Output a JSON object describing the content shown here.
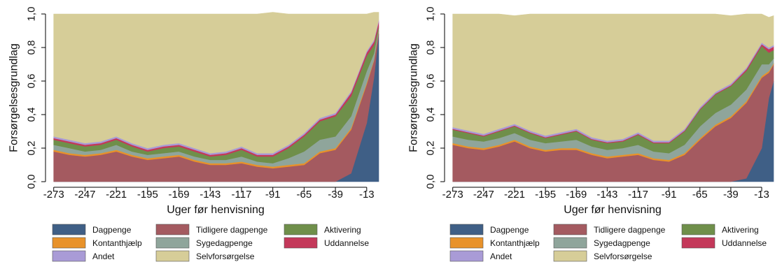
{
  "chart_data": [
    {
      "type": "area",
      "stacked": true,
      "ylabel": "Forsørgelsesgrundlag",
      "xlabel": "Uger før henvisning",
      "xlim": [
        -274,
        -3
      ],
      "ylim": [
        0,
        1
      ],
      "x_ticks": [
        -273,
        -247,
        -221,
        -195,
        -169,
        -143,
        -117,
        -91,
        -65,
        -39,
        -13
      ],
      "y_ticks": [
        0,
        0.2,
        0.4,
        0.6,
        0.8,
        1
      ],
      "y_tick_labels": [
        "0,0",
        "0,2",
        "0,4",
        "0,6",
        "0,8",
        "1,0"
      ],
      "x": [
        -273,
        -260,
        -247,
        -234,
        -221,
        -208,
        -195,
        -182,
        -169,
        -156,
        -143,
        -130,
        -117,
        -104,
        -91,
        -78,
        -65,
        -52,
        -39,
        -26,
        -13,
        -7,
        -3
      ],
      "series": [
        {
          "name": "Dagpenge",
          "color": "#3f5f86",
          "values": [
            0,
            0,
            0,
            0,
            0,
            0,
            0,
            0,
            0,
            0,
            0,
            0,
            0,
            0,
            0,
            0,
            0,
            0,
            0,
            0.05,
            0.35,
            0.62,
            0.88
          ]
        },
        {
          "name": "Tidligere dagpenge",
          "color": "#a45a60",
          "values": [
            0.18,
            0.16,
            0.15,
            0.16,
            0.18,
            0.15,
            0.13,
            0.14,
            0.15,
            0.12,
            0.1,
            0.1,
            0.11,
            0.09,
            0.08,
            0.09,
            0.1,
            0.17,
            0.19,
            0.26,
            0.23,
            0.1,
            0.02
          ]
        },
        {
          "name": "Kontanthjælp",
          "color": "#e8922a",
          "values": [
            0.01,
            0.01,
            0.01,
            0.01,
            0.01,
            0.01,
            0.01,
            0.01,
            0.01,
            0.01,
            0.01,
            0.01,
            0.01,
            0.01,
            0.01,
            0.01,
            0.01,
            0.01,
            0.01,
            0.01,
            0.01,
            0.005,
            0.005
          ]
        },
        {
          "name": "Sygedagpenge",
          "color": "#8fa59b",
          "values": [
            0.03,
            0.03,
            0.02,
            0.02,
            0.03,
            0.02,
            0.02,
            0.02,
            0.02,
            0.02,
            0.02,
            0.02,
            0.03,
            0.02,
            0.02,
            0.04,
            0.07,
            0.07,
            0.07,
            0.07,
            0.07,
            0.04,
            0.01
          ]
        },
        {
          "name": "Aktivering",
          "color": "#6f8f4a",
          "values": [
            0.03,
            0.03,
            0.03,
            0.03,
            0.03,
            0.03,
            0.02,
            0.03,
            0.03,
            0.03,
            0.02,
            0.03,
            0.04,
            0.03,
            0.04,
            0.06,
            0.09,
            0.11,
            0.12,
            0.12,
            0.09,
            0.05,
            0.01
          ]
        },
        {
          "name": "Uddannelse",
          "color": "#c4385a",
          "values": [
            0.01,
            0.01,
            0.01,
            0.01,
            0.01,
            0.01,
            0.01,
            0.01,
            0.01,
            0.01,
            0.01,
            0.01,
            0.01,
            0.01,
            0.01,
            0.01,
            0.01,
            0.01,
            0.01,
            0.02,
            0.02,
            0.02,
            0.03
          ]
        },
        {
          "name": "Andet",
          "color": "#a99bd6",
          "values": [
            0.01,
            0.01,
            0.01,
            0.01,
            0.01,
            0.01,
            0.01,
            0.01,
            0.01,
            0.01,
            0.01,
            0.01,
            0.01,
            0.01,
            0.01,
            0.01,
            0.01,
            0.01,
            0.01,
            0.01,
            0.01,
            0.01,
            0.01
          ]
        },
        {
          "name": "Selvforsørgelse",
          "color": "#d6cd98",
          "values": [
            0.73,
            0.75,
            0.77,
            0.76,
            0.73,
            0.77,
            0.8,
            0.78,
            0.77,
            0.8,
            0.83,
            0.82,
            0.79,
            0.83,
            0.84,
            0.78,
            0.71,
            0.62,
            0.59,
            0.46,
            0.22,
            0.165,
            0.045
          ]
        }
      ]
    },
    {
      "type": "area",
      "stacked": true,
      "ylabel": "Forsørgelsesgrundlag",
      "xlabel": "Uger før henvisning",
      "xlim": [
        -274,
        -3
      ],
      "ylim": [
        0,
        1
      ],
      "x_ticks": [
        -273,
        -247,
        -221,
        -195,
        -169,
        -143,
        -117,
        -91,
        -65,
        -39,
        -13
      ],
      "y_ticks": [
        0,
        0.2,
        0.4,
        0.6,
        0.8,
        1
      ],
      "y_tick_labels": [
        "0,0",
        "0,2",
        "0,4",
        "0,6",
        "0,8",
        "1,0"
      ],
      "x": [
        -273,
        -260,
        -247,
        -234,
        -221,
        -208,
        -195,
        -182,
        -169,
        -156,
        -143,
        -130,
        -117,
        -104,
        -91,
        -78,
        -65,
        -52,
        -39,
        -26,
        -13,
        -7,
        -3
      ],
      "series": [
        {
          "name": "Dagpenge",
          "color": "#3f5f86",
          "values": [
            0,
            0,
            0,
            0,
            0,
            0,
            0,
            0,
            0,
            0,
            0,
            0,
            0,
            0,
            0,
            0,
            0,
            0,
            0,
            0.02,
            0.2,
            0.5,
            0.6
          ]
        },
        {
          "name": "Tidligere dagpenge",
          "color": "#a45a60",
          "values": [
            0.22,
            0.2,
            0.19,
            0.21,
            0.24,
            0.2,
            0.18,
            0.19,
            0.19,
            0.16,
            0.14,
            0.15,
            0.16,
            0.13,
            0.12,
            0.16,
            0.25,
            0.33,
            0.38,
            0.45,
            0.42,
            0.15,
            0.1
          ]
        },
        {
          "name": "Kontanthjælp",
          "color": "#e8922a",
          "values": [
            0.01,
            0.01,
            0.01,
            0.01,
            0.01,
            0.01,
            0.01,
            0.01,
            0.01,
            0.01,
            0.01,
            0.01,
            0.01,
            0.01,
            0.01,
            0.01,
            0.01,
            0.01,
            0.01,
            0.01,
            0.01,
            0.01,
            0.005
          ]
        },
        {
          "name": "Sygedagpenge",
          "color": "#8fa59b",
          "values": [
            0.04,
            0.04,
            0.04,
            0.04,
            0.04,
            0.04,
            0.04,
            0.04,
            0.05,
            0.04,
            0.04,
            0.04,
            0.05,
            0.04,
            0.04,
            0.05,
            0.07,
            0.07,
            0.07,
            0.07,
            0.07,
            0.04,
            0.03
          ]
        },
        {
          "name": "Aktivering",
          "color": "#6f8f4a",
          "values": [
            0.04,
            0.04,
            0.03,
            0.04,
            0.04,
            0.04,
            0.03,
            0.04,
            0.05,
            0.04,
            0.04,
            0.04,
            0.06,
            0.05,
            0.06,
            0.08,
            0.1,
            0.11,
            0.11,
            0.11,
            0.11,
            0.07,
            0.05
          ]
        },
        {
          "name": "Uddannelse",
          "color": "#c4385a",
          "values": [
            0.005,
            0.005,
            0.005,
            0.005,
            0.005,
            0.005,
            0.005,
            0.005,
            0.005,
            0.005,
            0.005,
            0.005,
            0.005,
            0.005,
            0.005,
            0.005,
            0.005,
            0.005,
            0.005,
            0.01,
            0.01,
            0.02,
            0.02
          ]
        },
        {
          "name": "Andet",
          "color": "#a99bd6",
          "values": [
            0.01,
            0.01,
            0.01,
            0.01,
            0.01,
            0.01,
            0.01,
            0.01,
            0.01,
            0.01,
            0.01,
            0.01,
            0.01,
            0.01,
            0.01,
            0.01,
            0.01,
            0.01,
            0.01,
            0.01,
            0.01,
            0.01,
            0.01
          ]
        },
        {
          "name": "Selvforsørgelse",
          "color": "#d6cd98",
          "values": [
            0.675,
            0.695,
            0.715,
            0.685,
            0.645,
            0.695,
            0.725,
            0.705,
            0.685,
            0.735,
            0.755,
            0.745,
            0.705,
            0.755,
            0.755,
            0.685,
            0.555,
            0.465,
            0.405,
            0.32,
            0.17,
            0.18,
            0.175
          ]
        }
      ]
    }
  ],
  "legend": {
    "items": [
      {
        "label": "Dagpenge",
        "color": "#3f5f86"
      },
      {
        "label": "Kontanthjælp",
        "color": "#e8922a"
      },
      {
        "label": "Andet",
        "color": "#a99bd6"
      },
      {
        "label": "Tidligere dagpenge",
        "color": "#a45a60"
      },
      {
        "label": "Sygedagpenge",
        "color": "#8fa59b"
      },
      {
        "label": "Selvforsørgelse",
        "color": "#d6cd98"
      },
      {
        "label": "Aktivering",
        "color": "#6f8f4a"
      },
      {
        "label": "Uddannelse",
        "color": "#c4385a"
      }
    ]
  }
}
